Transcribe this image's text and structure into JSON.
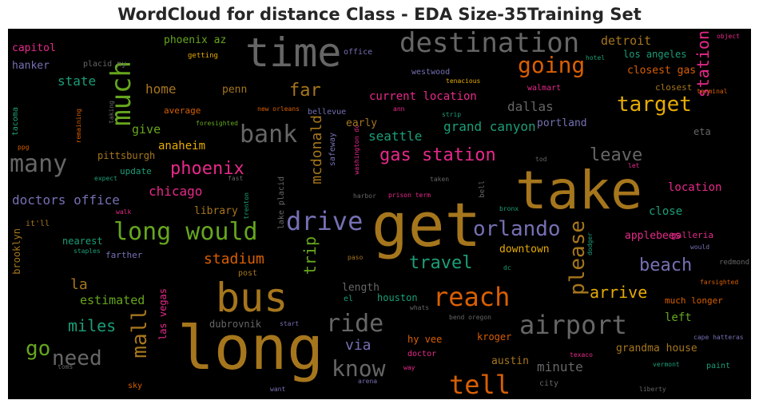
{
  "chart_data": {
    "type": "wordcloud",
    "title": "WordCloud for distance Class - EDA Size-35Training Set",
    "background": "#000000",
    "palette": "Dark2",
    "words": [
      {
        "text": "get",
        "size": 76,
        "color": "#a6761d"
      },
      {
        "text": "long",
        "size": 76,
        "color": "#a6761d"
      },
      {
        "text": "take",
        "size": 66,
        "color": "#a6761d"
      },
      {
        "text": "time",
        "size": 50,
        "color": "#666666"
      },
      {
        "text": "bus",
        "size": 50,
        "color": "#a6761d"
      },
      {
        "text": "destination",
        "size": 34,
        "color": "#666666"
      },
      {
        "text": "much",
        "size": 34,
        "color": "#66a61e"
      },
      {
        "text": "many",
        "size": 30,
        "color": "#666666"
      },
      {
        "text": "bank",
        "size": 30,
        "color": "#666666"
      },
      {
        "text": "long would",
        "size": 30,
        "color": "#66a61e"
      },
      {
        "text": "drive",
        "size": 32,
        "color": "#7570b3"
      },
      {
        "text": "airport",
        "size": 32,
        "color": "#666666"
      },
      {
        "text": "reach",
        "size": 32,
        "color": "#d95f02"
      },
      {
        "text": "tell",
        "size": 32,
        "color": "#d95f02"
      },
      {
        "text": "know",
        "size": 28,
        "color": "#666666"
      },
      {
        "text": "ride",
        "size": 30,
        "color": "#666666"
      },
      {
        "text": "going",
        "size": 28,
        "color": "#d95f02"
      },
      {
        "text": "target",
        "size": 26,
        "color": "#e6ab02"
      },
      {
        "text": "orlando",
        "size": 26,
        "color": "#7570b3"
      },
      {
        "text": "please",
        "size": 26,
        "color": "#a6761d"
      },
      {
        "text": "mall",
        "size": 26,
        "color": "#a6761d"
      },
      {
        "text": "go",
        "size": 26,
        "color": "#66a61e"
      },
      {
        "text": "need",
        "size": 26,
        "color": "#666666"
      },
      {
        "text": "phoenix",
        "size": 22,
        "color": "#e7298a"
      },
      {
        "text": "gas station",
        "size": 22,
        "color": "#e7298a"
      },
      {
        "text": "travel",
        "size": 22,
        "color": "#1b9e77"
      },
      {
        "text": "beach",
        "size": 22,
        "color": "#7570b3"
      },
      {
        "text": "far",
        "size": 22,
        "color": "#a6761d"
      },
      {
        "text": "leave",
        "size": 22,
        "color": "#666666"
      },
      {
        "text": "arrive",
        "size": 20,
        "color": "#e6ab02"
      },
      {
        "text": "miles",
        "size": 20,
        "color": "#1b9e77"
      },
      {
        "text": "station",
        "size": 20,
        "color": "#e7298a"
      },
      {
        "text": "trip",
        "size": 20,
        "color": "#66a61e"
      },
      {
        "text": "mcdonald",
        "size": 18,
        "color": "#a6761d"
      },
      {
        "text": "stadium",
        "size": 18,
        "color": "#d95f02"
      },
      {
        "text": "la",
        "size": 18,
        "color": "#a6761d"
      },
      {
        "text": "via",
        "size": 18,
        "color": "#7570b3"
      },
      {
        "text": "minute",
        "size": 16,
        "color": "#666666"
      },
      {
        "text": "dallas",
        "size": 16,
        "color": "#666666"
      },
      {
        "text": "chicago",
        "size": 16,
        "color": "#e7298a"
      },
      {
        "text": "seattle",
        "size": 16,
        "color": "#1b9e77"
      },
      {
        "text": "grand canyon",
        "size": 16,
        "color": "#1b9e77"
      },
      {
        "text": "doctors office",
        "size": 16,
        "color": "#7570b3"
      },
      {
        "text": "home",
        "size": 16,
        "color": "#a6761d"
      },
      {
        "text": "state",
        "size": 16,
        "color": "#1b9e77"
      },
      {
        "text": "give",
        "size": 15,
        "color": "#66a61e"
      },
      {
        "text": "estimated",
        "size": 15,
        "color": "#66a61e"
      },
      {
        "text": "current location",
        "size": 14,
        "color": "#e7298a"
      },
      {
        "text": "detroit",
        "size": 15,
        "color": "#a6761d"
      },
      {
        "text": "anaheim",
        "size": 14,
        "color": "#e6ab02"
      },
      {
        "text": "left",
        "size": 14,
        "color": "#66a61e"
      },
      {
        "text": "close",
        "size": 14,
        "color": "#1b9e77"
      },
      {
        "text": "location",
        "size": 14,
        "color": "#e7298a"
      },
      {
        "text": "applebees",
        "size": 13,
        "color": "#e7298a"
      },
      {
        "text": "capitol",
        "size": 13,
        "color": "#e7298a"
      },
      {
        "text": "hanker",
        "size": 13,
        "color": "#7570b3"
      },
      {
        "text": "phoenix az",
        "size": 13,
        "color": "#66a61e"
      },
      {
        "text": "penn",
        "size": 13,
        "color": "#a6761d"
      },
      {
        "text": "early",
        "size": 13,
        "color": "#a6761d"
      },
      {
        "text": "portland",
        "size": 13,
        "color": "#7570b3"
      },
      {
        "text": "closest gas",
        "size": 13,
        "color": "#d95f02"
      },
      {
        "text": "los angeles",
        "size": 12,
        "color": "#1b9e77"
      },
      {
        "text": "library",
        "size": 13,
        "color": "#a6761d"
      },
      {
        "text": "downtown",
        "size": 13,
        "color": "#e6ab02"
      },
      {
        "text": "length",
        "size": 13,
        "color": "#666666"
      },
      {
        "text": "grandma house",
        "size": 13,
        "color": "#a6761d"
      },
      {
        "text": "austin",
        "size": 13,
        "color": "#a6761d"
      },
      {
        "text": "kroger",
        "size": 12,
        "color": "#d95f02"
      },
      {
        "text": "hy vee",
        "size": 12,
        "color": "#d95f02"
      },
      {
        "text": "houston",
        "size": 12,
        "color": "#1b9e77"
      },
      {
        "text": "dubrovnik",
        "size": 12,
        "color": "#666666"
      },
      {
        "text": "las vegas",
        "size": 12,
        "color": "#e7298a"
      },
      {
        "text": "brooklyn",
        "size": 12,
        "color": "#a6761d"
      },
      {
        "text": "nearest",
        "size": 12,
        "color": "#1b9e77"
      },
      {
        "text": "update",
        "size": 11,
        "color": "#1b9e77"
      },
      {
        "text": "pittsburgh",
        "size": 12,
        "color": "#a6761d"
      },
      {
        "text": "average",
        "size": 11,
        "color": "#d95f02"
      },
      {
        "text": "placid ny",
        "size": 10,
        "color": "#666666"
      },
      {
        "text": "getting",
        "size": 9,
        "color": "#e6ab02"
      },
      {
        "text": "office",
        "size": 10,
        "color": "#7570b3"
      },
      {
        "text": "westwood",
        "size": 10,
        "color": "#7570b3"
      },
      {
        "text": "walmart",
        "size": 10,
        "color": "#e7298a"
      },
      {
        "text": "closest",
        "size": 11,
        "color": "#a6761d"
      },
      {
        "text": "bellevue",
        "size": 10,
        "color": "#7570b3"
      },
      {
        "text": "foresighted",
        "size": 8,
        "color": "#66a61e"
      },
      {
        "text": "safeway",
        "size": 10,
        "color": "#7570b3"
      },
      {
        "text": "eta",
        "size": 12,
        "color": "#666666"
      },
      {
        "text": "galleria",
        "size": 11,
        "color": "#e7298a"
      },
      {
        "text": "redmond",
        "size": 9,
        "color": "#666666"
      },
      {
        "text": "much longer",
        "size": 11,
        "color": "#d95f02"
      },
      {
        "text": "farsighted",
        "size": 8,
        "color": "#d95f02"
      },
      {
        "text": "paint",
        "size": 10,
        "color": "#1b9e77"
      },
      {
        "text": "cape hatteras",
        "size": 8,
        "color": "#7570b3"
      },
      {
        "text": "vermont",
        "size": 8,
        "color": "#1b9e77"
      },
      {
        "text": "texaco",
        "size": 8,
        "color": "#e7298a"
      },
      {
        "text": "doctor",
        "size": 10,
        "color": "#e7298a"
      },
      {
        "text": "way",
        "size": 8,
        "color": "#e7298a"
      },
      {
        "text": "city",
        "size": 10,
        "color": "#666666"
      },
      {
        "text": "liberty",
        "size": 8,
        "color": "#666666"
      },
      {
        "text": "arena",
        "size": 8,
        "color": "#7570b3"
      },
      {
        "text": "want",
        "size": 8,
        "color": "#7570b3"
      },
      {
        "text": "sky",
        "size": 10,
        "color": "#d95f02"
      },
      {
        "text": "toms",
        "size": 8,
        "color": "#666666"
      },
      {
        "text": "el",
        "size": 10,
        "color": "#1b9e77"
      },
      {
        "text": "whats",
        "size": 8,
        "color": "#666666"
      },
      {
        "text": "bend oregon",
        "size": 8,
        "color": "#666666"
      },
      {
        "text": "start",
        "size": 8,
        "color": "#7570b3"
      },
      {
        "text": "dc",
        "size": 8,
        "color": "#1b9e77"
      },
      {
        "text": "paso",
        "size": 8,
        "color": "#a6761d"
      },
      {
        "text": "post",
        "size": 10,
        "color": "#a6761d"
      },
      {
        "text": "farther",
        "size": 11,
        "color": "#7570b3"
      },
      {
        "text": "staples",
        "size": 8,
        "color": "#1b9e77"
      },
      {
        "text": "it'll",
        "size": 10,
        "color": "#a6761d"
      },
      {
        "text": "walk",
        "size": 8,
        "color": "#e7298a"
      },
      {
        "text": "expect",
        "size": 8,
        "color": "#1b9e77"
      },
      {
        "text": "fast",
        "size": 8,
        "color": "#666666"
      },
      {
        "text": "trenton",
        "size": 8,
        "color": "#1b9e77"
      },
      {
        "text": "lake placid",
        "size": 10,
        "color": "#666666"
      },
      {
        "text": "washington dc",
        "size": 8,
        "color": "#e7298a"
      },
      {
        "text": "harbor",
        "size": 8,
        "color": "#666666"
      },
      {
        "text": "prison term",
        "size": 8,
        "color": "#e7298a"
      },
      {
        "text": "bell",
        "size": 9,
        "color": "#666666"
      },
      {
        "text": "bronx",
        "size": 8,
        "color": "#1b9e77"
      },
      {
        "text": "dodger",
        "size": 8,
        "color": "#1b9e77"
      },
      {
        "text": "would",
        "size": 8,
        "color": "#7570b3"
      },
      {
        "text": "taken",
        "size": 8,
        "color": "#666666"
      },
      {
        "text": "tod",
        "size": 8,
        "color": "#666666"
      },
      {
        "text": "let",
        "size": 8,
        "color": "#e7298a"
      },
      {
        "text": "tenacious",
        "size": 8,
        "color": "#e6ab02"
      },
      {
        "text": "ann",
        "size": 8,
        "color": "#e7298a"
      },
      {
        "text": "strip",
        "size": 8,
        "color": "#1b9e77"
      },
      {
        "text": "new orleans",
        "size": 8,
        "color": "#d95f02"
      },
      {
        "text": "taking",
        "size": 8,
        "color": "#666666"
      },
      {
        "text": "remaining",
        "size": 8,
        "color": "#d95f02"
      },
      {
        "text": "ppg",
        "size": 8,
        "color": "#d95f02"
      },
      {
        "text": "tacoma",
        "size": 10,
        "color": "#1b9e77"
      },
      {
        "text": "hotel",
        "size": 8,
        "color": "#1b9e77"
      },
      {
        "text": "terminal",
        "size": 8,
        "color": "#d95f02"
      },
      {
        "text": "object",
        "size": 8,
        "color": "#e7298a"
      }
    ]
  }
}
